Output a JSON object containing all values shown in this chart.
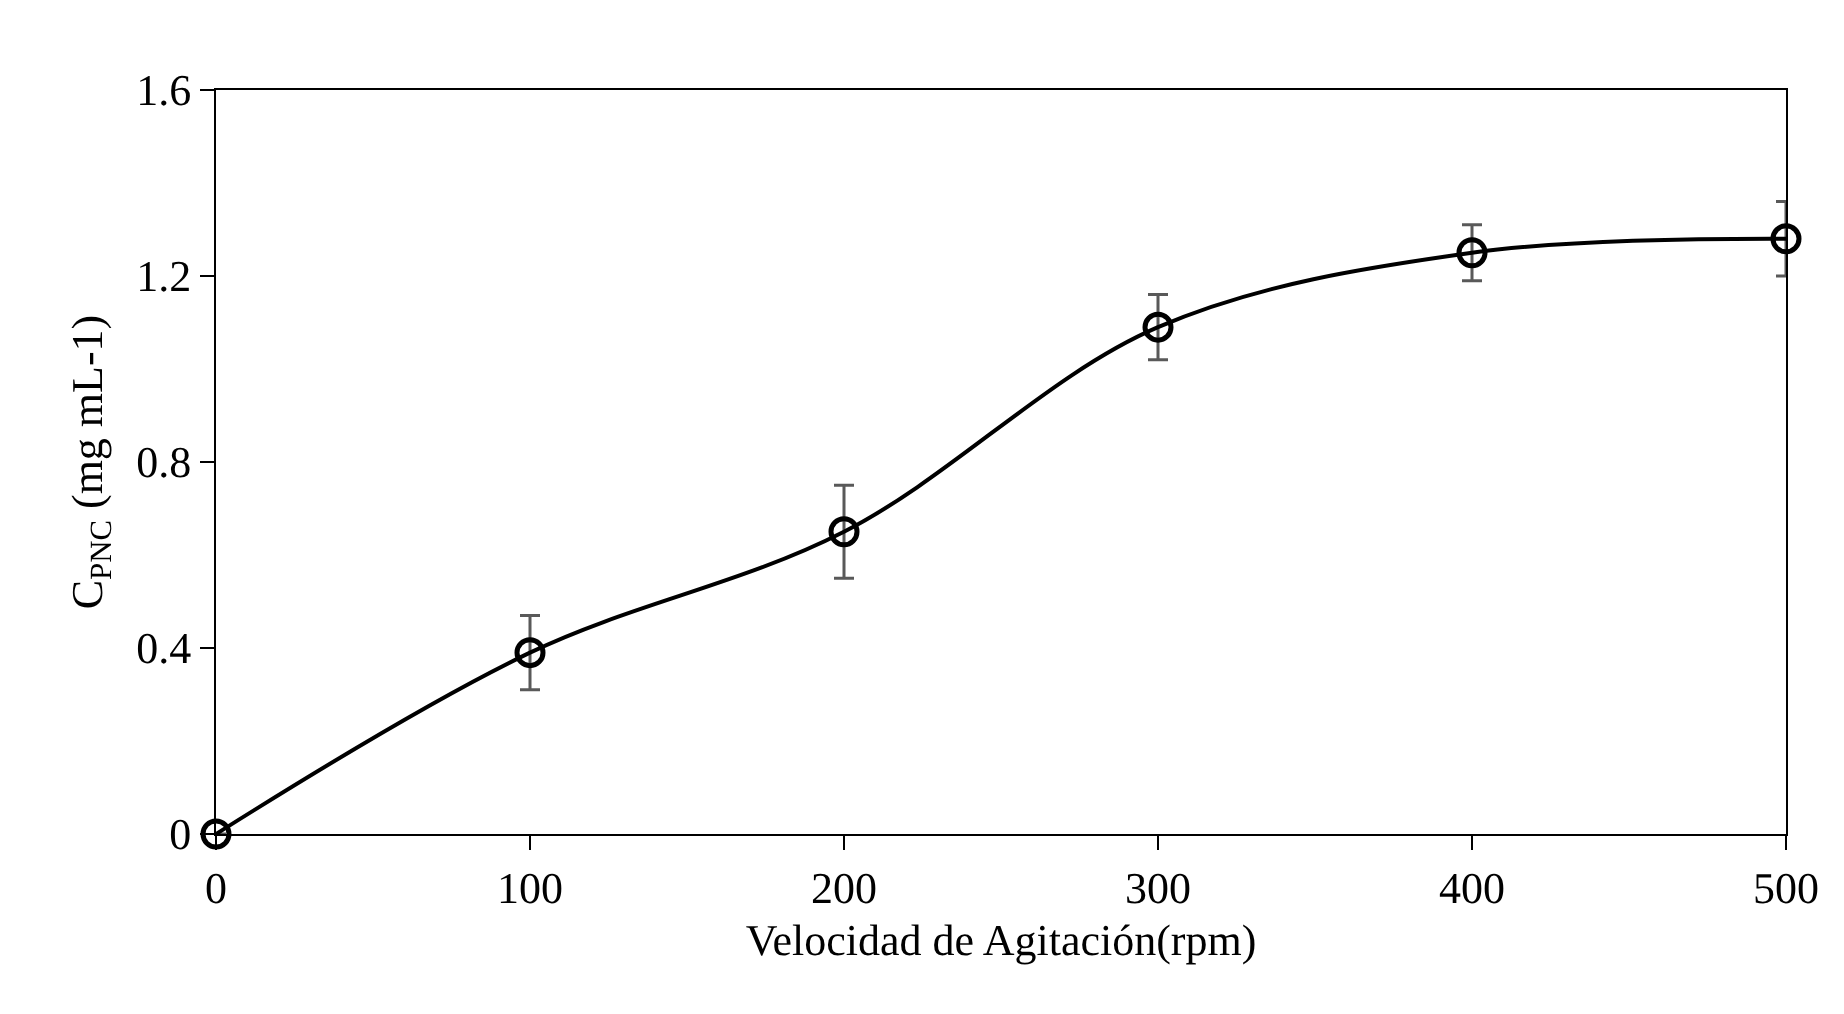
{
  "chart_data": {
    "type": "line",
    "xlabel": "Velocidad de Agitación(rpm)",
    "ylabel": "C$_{PNC}$ (mg mL-1)",
    "x": [
      0,
      100,
      200,
      300,
      400,
      500
    ],
    "series": [
      {
        "color": "#000000",
        "values": [
          0,
          0.39,
          0.65,
          1.09,
          1.25,
          1.28
        ],
        "errors": [
          null,
          0.08,
          0.1,
          0.07,
          0.06,
          0.08
        ]
      }
    ],
    "xlim": [
      0,
      500
    ],
    "xticks": [
      0,
      100,
      200,
      300,
      400,
      500
    ],
    "ylim": [
      0,
      1.6
    ],
    "yticks": [
      0,
      0.4,
      0.8,
      1.2,
      1.6
    ],
    "marker": "circle",
    "line_style": "solid"
  }
}
